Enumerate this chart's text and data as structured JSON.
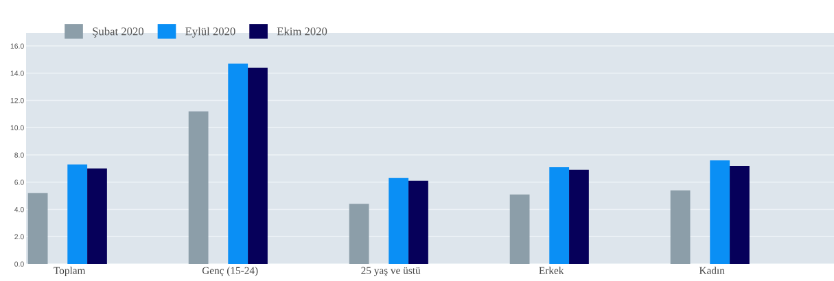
{
  "chart_data": {
    "type": "bar",
    "categories": [
      "Toplam",
      "Genç (15-24)",
      "25 yaş ve üstü",
      "Erkek",
      "Kadın"
    ],
    "series": [
      {
        "name": "Şubat 2020",
        "color": "#8c9ea9",
        "values": [
          5.2,
          11.2,
          4.4,
          5.1,
          5.4
        ]
      },
      {
        "name": "Eylül 2020",
        "color": "#0a8ff5",
        "values": [
          7.3,
          14.7,
          6.3,
          7.1,
          7.6
        ]
      },
      {
        "name": "Ekim 2020",
        "color": "#06005a",
        "values": [
          7.0,
          14.4,
          6.1,
          6.9,
          7.2
        ]
      }
    ],
    "ylim": [
      0,
      16
    ],
    "yticks": [
      {
        "value": 0,
        "label": "0.0"
      },
      {
        "value": 2,
        "label": "2.0"
      },
      {
        "value": 4,
        "label": "4.0"
      },
      {
        "value": 6,
        "label": "6.0"
      },
      {
        "value": 8,
        "label": "8.0"
      },
      {
        "value": 10,
        "label": "10.0"
      },
      {
        "value": 12,
        "label": "12.0"
      },
      {
        "value": 14,
        "label": "14.0"
      },
      {
        "value": 16,
        "label": "16.0"
      }
    ],
    "grid": "y",
    "legend": "top left"
  }
}
